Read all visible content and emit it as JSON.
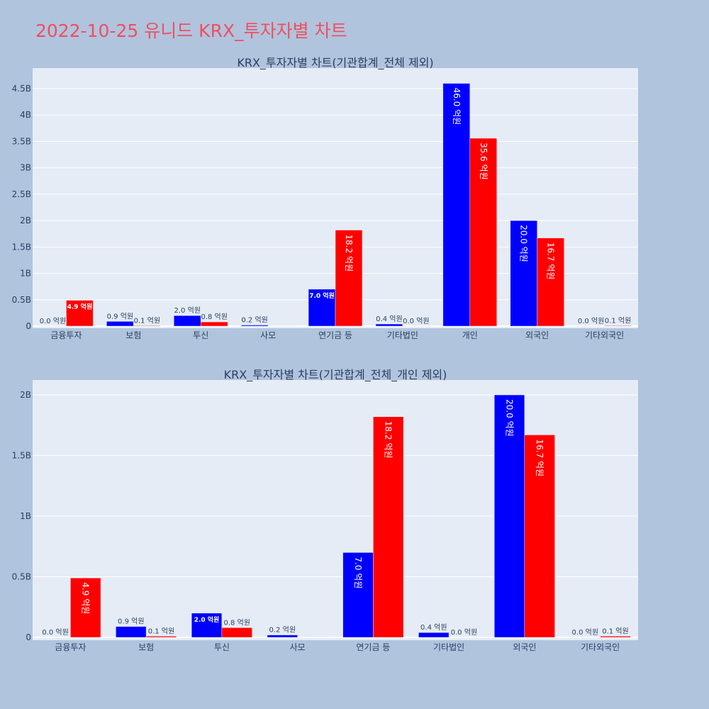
{
  "title": "2022-10-25 유니드 KRX_투자자별 차트",
  "colors": {
    "series1": "#0000ff",
    "series2": "#ff0000",
    "plot_bg": "#e5ecf6",
    "page_bg": "#b0c4de"
  },
  "chart_data": [
    {
      "type": "bar",
      "title": "KRX_투자자별 차트(기관합계_전체 제외)",
      "categories": [
        "금융투자",
        "보험",
        "투신",
        "사모",
        "연기금 등",
        "기타법인",
        "개인",
        "외국인",
        "기타외국인"
      ],
      "series": [
        {
          "values": [
            0.0,
            0.09,
            0.2,
            0.02,
            0.7,
            0.04,
            4.6,
            2.0,
            0.0
          ],
          "labels": [
            "0.0 억원",
            "0.9 억원",
            "2.0 억원",
            "0.2 억원",
            "7.0 억원",
            "0.4 억원",
            "46.0 억원",
            "20.0 억원",
            "0.0 억원"
          ]
        },
        {
          "values": [
            0.49,
            0.01,
            0.08,
            0,
            1.82,
            0.0,
            3.56,
            1.67,
            0.01
          ],
          "labels": [
            "4.9 억원",
            "0.1 억원",
            "0.8 억원",
            "",
            "18.2 억원",
            "0.0 억원",
            "35.6 억원",
            "16.7 억원",
            "0.1 억원"
          ]
        }
      ],
      "yticks": [
        "0",
        "0.5B",
        "1B",
        "1.5B",
        "2B",
        "2.5B",
        "3B",
        "3.5B",
        "4B",
        "4.5B"
      ],
      "ylim": [
        0,
        4.9
      ],
      "unit": "B",
      "grid": true
    },
    {
      "type": "bar",
      "title": "KRX_투자자별 차트(기관합계_전체_개인 제외)",
      "categories": [
        "금융투자",
        "보험",
        "투신",
        "사모",
        "연기금 등",
        "기타법인",
        "외국인",
        "기타외국인"
      ],
      "series": [
        {
          "values": [
            0.0,
            0.09,
            0.2,
            0.02,
            0.7,
            0.04,
            2.0,
            0.0
          ],
          "labels": [
            "0.0 억원",
            "0.9 억원",
            "2.0 억원",
            "0.2 억원",
            "7.0 억원",
            "0.4 억원",
            "20.0 억원",
            "0.0 억원"
          ]
        },
        {
          "values": [
            0.49,
            0.01,
            0.08,
            0,
            1.82,
            0.0,
            1.67,
            0.01
          ],
          "labels": [
            "4.9 억원",
            "0.1 억원",
            "0.8 억원",
            "",
            "18.2 억원",
            "0.0 억원",
            "16.7 억원",
            "0.1 억원"
          ]
        }
      ],
      "yticks": [
        "0",
        "0.5B",
        "1B",
        "1.5B",
        "2B"
      ],
      "ylim": [
        0,
        2.14
      ],
      "unit": "B",
      "grid": true
    }
  ]
}
